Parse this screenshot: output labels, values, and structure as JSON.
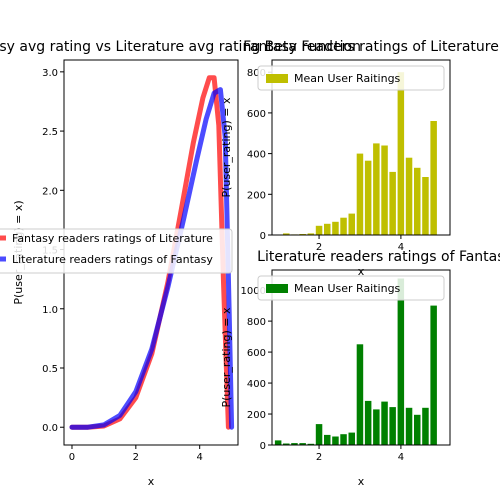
{
  "chart_data": [
    {
      "type": "line",
      "title": "Fantasy avg rating vs Literature avg rating Beta Function",
      "xlabel": "x",
      "ylabel": "P(user_rating) = x)",
      "xlim": [
        -0.25,
        5.2
      ],
      "ylim": [
        -0.15,
        3.1
      ],
      "x_ticks": [
        "0",
        "2",
        "4"
      ],
      "y_ticks": [
        "0.0",
        "0.5",
        "1.0",
        "1.5",
        "2.0",
        "2.5",
        "3.0"
      ],
      "legend": "center-left",
      "series": [
        {
          "name": "Fantasy readers ratings of Literature",
          "color": "#ff0000",
          "x": [
            0,
            0.5,
            1.0,
            1.5,
            2.0,
            2.5,
            3.0,
            3.4,
            3.8,
            4.1,
            4.3,
            4.45,
            4.6,
            4.75,
            4.9
          ],
          "y": [
            0,
            0.0,
            0.01,
            0.07,
            0.25,
            0.62,
            1.22,
            1.8,
            2.4,
            2.78,
            2.95,
            2.95,
            2.55,
            1.2,
            0.0
          ]
        },
        {
          "name": "Literature readers ratings of Fantasy",
          "color": "#0000ff",
          "x": [
            0,
            0.5,
            1.0,
            1.5,
            2.0,
            2.5,
            3.0,
            3.5,
            3.9,
            4.2,
            4.45,
            4.65,
            4.8,
            4.92,
            5.0
          ],
          "y": [
            0,
            0.0,
            0.02,
            0.1,
            0.3,
            0.66,
            1.18,
            1.76,
            2.25,
            2.6,
            2.82,
            2.85,
            2.45,
            1.0,
            0.0
          ]
        }
      ]
    },
    {
      "type": "bar",
      "title": "Fantasy readers ratings of Literature",
      "xlabel": "x",
      "ylabel": "P(user_rating) = x",
      "xlim": [
        0.85,
        5.2
      ],
      "ylim": [
        0,
        860
      ],
      "x_ticks": [
        "2",
        "4"
      ],
      "y_ticks": [
        "0",
        "200",
        "400",
        "600",
        "800"
      ],
      "legend": "top-right",
      "series": [
        {
          "name": "Mean User Raitings",
          "color": "#bfbf00",
          "x": [
            1.2,
            1.4,
            1.6,
            1.8,
            2.0,
            2.2,
            2.4,
            2.6,
            2.8,
            3.0,
            3.2,
            3.4,
            3.6,
            3.8,
            4.0,
            4.2,
            4.4,
            4.6,
            4.8
          ],
          "values": [
            8,
            3,
            5,
            8,
            45,
            55,
            65,
            85,
            105,
            400,
            365,
            450,
            440,
            310,
            800,
            380,
            330,
            285,
            560
          ]
        }
      ]
    },
    {
      "type": "bar",
      "title": "Literature readers ratings of Fantasy",
      "xlabel": "x",
      "ylabel": "P(user_rating) = x",
      "xlim": [
        0.85,
        5.2
      ],
      "ylim": [
        0,
        1130
      ],
      "x_ticks": [
        "2",
        "4"
      ],
      "y_ticks": [
        "0",
        "200",
        "400",
        "600",
        "800",
        "1000"
      ],
      "legend": "top-right",
      "series": [
        {
          "name": "Mean User Raitings",
          "color": "#008000",
          "x": [
            1.0,
            1.2,
            1.4,
            1.6,
            1.8,
            2.0,
            2.2,
            2.4,
            2.6,
            2.8,
            3.0,
            3.2,
            3.4,
            3.6,
            3.8,
            4.0,
            4.2,
            4.4,
            4.6,
            4.8
          ],
          "values": [
            30,
            10,
            12,
            12,
            8,
            135,
            65,
            55,
            70,
            80,
            650,
            285,
            230,
            280,
            245,
            1075,
            240,
            195,
            240,
            900
          ]
        }
      ]
    }
  ]
}
